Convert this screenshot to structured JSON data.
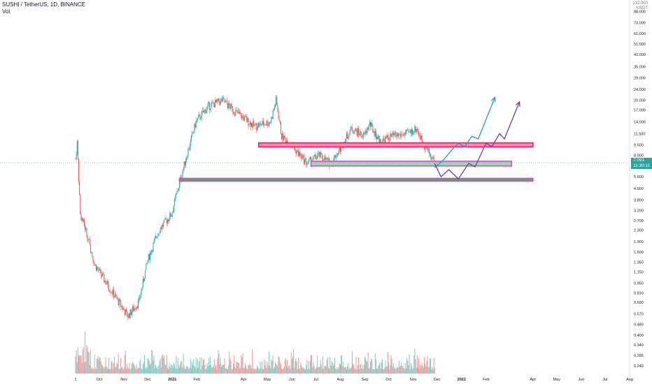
{
  "header": {
    "symbol_line": "SUSHI / TetherUS, 1D, BINANCE",
    "volume_label": "Vol"
  },
  "price_scale": {
    "currency_top": "132.000",
    "currency_unit": "USDT",
    "last_price": "7.091",
    "countdown": "11:30:11"
  },
  "chart_data": {
    "type": "candlestick",
    "title": "SUSHI / TetherUS, 1D, BINANCE",
    "y_scale": "log",
    "y_ticks": [
      "88.000",
      "73.000",
      "61.000",
      "51.000",
      "43.000",
      "35.000",
      "29.000",
      "24.000",
      "20.000",
      "17.000",
      "14.000",
      "11.500",
      "9.500",
      "8.000",
      "6.600",
      "5.600",
      "4.600",
      "3.800",
      "3.200",
      "2.700",
      "2.300",
      "1.900",
      "1.600",
      "1.350",
      "1.150",
      "0.950",
      "0.810",
      "0.690",
      "0.570",
      "0.480",
      "0.400",
      "0.340",
      "0.285",
      "0.240"
    ],
    "x_ticks": [
      "1",
      "Oct",
      "Nov",
      "Dec",
      "2021",
      "Feb",
      "Apr",
      "May",
      "Jun",
      "Jul",
      "Aug",
      "Sep",
      "Oct",
      "Nov",
      "Dec",
      "2022",
      "Feb",
      "Apr",
      "May",
      "Jun",
      "Jul",
      "Aug"
    ],
    "price_path": [
      {
        "date": "2020-09-01",
        "close": 7.5
      },
      {
        "date": "2020-09-03",
        "close": 10.0
      },
      {
        "date": "2020-09-07",
        "close": 3.0
      },
      {
        "date": "2020-09-14",
        "close": 2.3
      },
      {
        "date": "2020-09-25",
        "close": 1.3
      },
      {
        "date": "2020-10-10",
        "close": 0.95
      },
      {
        "date": "2020-10-25",
        "close": 0.7
      },
      {
        "date": "2020-11-06",
        "close": 0.55
      },
      {
        "date": "2020-11-20",
        "close": 0.7
      },
      {
        "date": "2020-12-01",
        "close": 1.4
      },
      {
        "date": "2020-12-15",
        "close": 2.3
      },
      {
        "date": "2020-12-31",
        "close": 3.0
      },
      {
        "date": "2021-01-15",
        "close": 6.5
      },
      {
        "date": "2021-01-31",
        "close": 14.0
      },
      {
        "date": "2021-02-15",
        "close": 18.0
      },
      {
        "date": "2021-03-05",
        "close": 20.0
      },
      {
        "date": "2021-03-25",
        "close": 16.0
      },
      {
        "date": "2021-04-15",
        "close": 13.0
      },
      {
        "date": "2021-05-05",
        "close": 14.0
      },
      {
        "date": "2021-05-12",
        "close": 20.0
      },
      {
        "date": "2021-05-19",
        "close": 11.0
      },
      {
        "date": "2021-05-31",
        "close": 9.5
      },
      {
        "date": "2021-06-20",
        "close": 7.0
      },
      {
        "date": "2021-07-05",
        "close": 8.0
      },
      {
        "date": "2021-07-20",
        "close": 7.0
      },
      {
        "date": "2021-08-01",
        "close": 9.0
      },
      {
        "date": "2021-08-15",
        "close": 12.5
      },
      {
        "date": "2021-08-31",
        "close": 11.0
      },
      {
        "date": "2021-09-07",
        "close": 13.5
      },
      {
        "date": "2021-09-20",
        "close": 10.0
      },
      {
        "date": "2021-10-05",
        "close": 11.0
      },
      {
        "date": "2021-10-25",
        "close": 11.5
      },
      {
        "date": "2021-11-05",
        "close": 12.5
      },
      {
        "date": "2021-11-15",
        "close": 9.5
      },
      {
        "date": "2021-11-28",
        "close": 7.1
      }
    ],
    "zones": [
      {
        "name": "resistance-zone",
        "low": 9.2,
        "high": 9.85,
        "start": "2021-04-20",
        "end": "2022-04-01",
        "color": "#f48fb1",
        "border": "#e91e63"
      },
      {
        "name": "demand-zone",
        "low": 6.7,
        "high": 7.25,
        "start": "2021-06-25",
        "end": "2022-03-05",
        "color": "#a5d6a7",
        "border": "#e040fb"
      },
      {
        "name": "support-zone",
        "low": 5.2,
        "high": 5.45,
        "start": "2021-01-10",
        "end": "2022-04-01",
        "color": "#4caf50",
        "border": "#e040fb"
      }
    ],
    "projections": [
      {
        "name": "cyan-projection",
        "color": "#1e9ad6",
        "points": [
          {
            "date": "2021-11-28",
            "price": 6.5
          },
          {
            "date": "2021-12-10",
            "price": 7.5
          },
          {
            "date": "2021-12-20",
            "price": 8.8
          },
          {
            "date": "2021-12-28",
            "price": 9.8
          },
          {
            "date": "2022-01-05",
            "price": 9.2
          },
          {
            "date": "2022-01-14",
            "price": 11.0
          },
          {
            "date": "2022-01-22",
            "price": 10.5
          },
          {
            "date": "2022-02-12",
            "price": 21.0
          }
        ]
      },
      {
        "name": "purple-projection",
        "color": "#6b3fa0",
        "points": [
          {
            "date": "2021-11-28",
            "price": 7.0
          },
          {
            "date": "2021-12-06",
            "price": 5.6
          },
          {
            "date": "2021-12-16",
            "price": 6.3
          },
          {
            "date": "2021-12-28",
            "price": 5.4
          },
          {
            "date": "2022-01-10",
            "price": 7.0
          },
          {
            "date": "2022-01-18",
            "price": 6.6
          },
          {
            "date": "2022-02-01",
            "price": 9.8
          },
          {
            "date": "2022-02-08",
            "price": 9.2
          },
          {
            "date": "2022-02-18",
            "price": 11.5
          },
          {
            "date": "2022-02-24",
            "price": 10.5
          },
          {
            "date": "2022-03-15",
            "price": 19.5
          }
        ]
      }
    ],
    "volume_color_up": "#26a69a",
    "volume_color_down": "#ef5350"
  }
}
